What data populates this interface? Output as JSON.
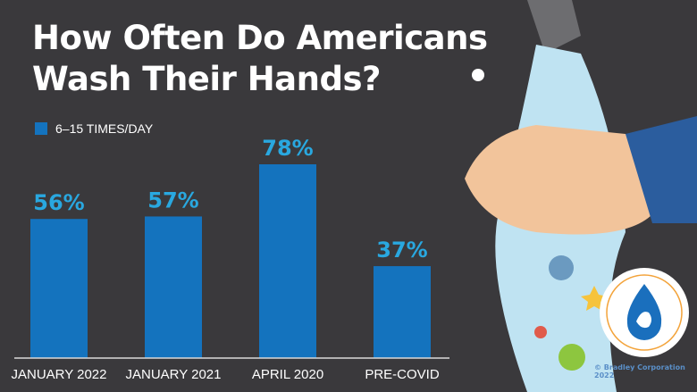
{
  "chart_data": {
    "type": "bar",
    "title_lines": [
      "How Often Do Americans",
      "Wash Their Hands?"
    ],
    "categories": [
      "JANUARY 2022",
      "JANUARY 2021",
      "APRIL 2020",
      "PRE-COVID"
    ],
    "series": [
      {
        "name": "6–15 TIMES/DAY",
        "values": [
          56,
          57,
          78,
          37
        ]
      }
    ],
    "data_labels": [
      "56%",
      "57%",
      "78%",
      "37%"
    ],
    "ylim": [
      0,
      80
    ],
    "grid": false,
    "legend": "top-left",
    "colors": {
      "bar": "#1473be",
      "label": "#29a8e0",
      "background": "#3a393c"
    }
  },
  "logo": {
    "top_text": "HEALTHY HANDWASHING SURVEY",
    "bottom_text": "BRADLEY CORPORATION"
  },
  "copyright": "© Bradley Corporation 2022"
}
